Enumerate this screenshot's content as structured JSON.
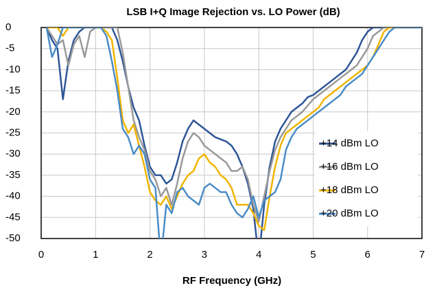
{
  "chart_data": {
    "type": "line",
    "title": "LSB I+Q Image Rejection vs. LO Power (dB)",
    "x_label": "RF Frequency  (GHz)",
    "x": [
      0.1,
      0.2,
      0.3,
      0.4,
      0.5,
      0.6,
      0.7,
      0.8,
      0.9,
      1.0,
      1.1,
      1.2,
      1.3,
      1.4,
      1.5,
      1.6,
      1.7,
      1.8,
      1.9,
      2.0,
      2.1,
      2.2,
      2.3,
      2.4,
      2.5,
      2.6,
      2.7,
      2.8,
      2.9,
      3.0,
      3.1,
      3.2,
      3.3,
      3.4,
      3.5,
      3.6,
      3.7,
      3.8,
      3.9,
      4.0,
      4.1,
      4.2,
      4.3,
      4.4,
      4.5,
      4.6,
      4.7,
      4.8,
      4.9,
      5.0,
      5.1,
      5.2,
      5.3,
      5.4,
      5.5,
      5.6,
      5.7,
      5.8,
      5.9,
      6.0,
      6.1,
      6.2,
      6.3,
      6.4,
      6.5,
      6.6,
      6.7,
      6.8,
      6.9,
      7.0
    ],
    "series": [
      {
        "name": "+14 dBm LO",
        "color": "#2e5597",
        "values": [
          0,
          -3,
          -5,
          -17,
          -8,
          -3,
          -1,
          0,
          0,
          0,
          0,
          0,
          0,
          -3,
          -8,
          -14,
          -19,
          -22,
          -28,
          -33,
          -35,
          -35,
          -37,
          -36,
          -32,
          -27,
          -24,
          -22,
          -23,
          -24,
          -25,
          -26,
          -26.5,
          -27,
          -28,
          -30,
          -33,
          -37,
          -43,
          -55,
          -42,
          -33,
          -27,
          -24,
          -22,
          -20,
          -19,
          -18,
          -16.5,
          -16,
          -15,
          -14,
          -13,
          -12,
          -11,
          -10,
          -8,
          -6,
          -3,
          -1,
          0,
          0,
          0,
          0,
          0,
          0,
          0,
          0,
          0,
          0
        ]
      },
      {
        "name": "+16 dBm LO",
        "color": "#999999",
        "values": [
          0,
          -2,
          -4,
          -3,
          -9,
          -4,
          -2,
          -7,
          -1,
          0,
          0,
          0,
          0,
          0,
          -6,
          -14,
          -22,
          -26,
          -29,
          -34,
          -36,
          -40,
          -38,
          -42,
          -37,
          -31,
          -27,
          -25,
          -26,
          -28,
          -29,
          -30,
          -31,
          -32,
          -34,
          -34,
          -33,
          -36,
          -42,
          -46,
          -40,
          -34,
          -29,
          -26,
          -24,
          -22,
          -21,
          -20,
          -18.5,
          -17,
          -16,
          -15,
          -14,
          -13,
          -12,
          -11,
          -10,
          -9,
          -7,
          -5,
          -2,
          -1,
          0,
          0,
          0,
          0,
          0,
          0,
          0,
          0
        ]
      },
      {
        "name": "+18 dBm LO",
        "color": "#f0b400",
        "values": [
          0,
          0,
          0,
          -2,
          0,
          0,
          0,
          0,
          0,
          0,
          0,
          -1,
          -3,
          -12,
          -22,
          -25,
          -23,
          -28,
          -33,
          -39,
          -41,
          -42,
          -40,
          -43,
          -40,
          -37,
          -35,
          -34,
          -31,
          -30,
          -32,
          -33,
          -35,
          -36,
          -38,
          -42,
          -42,
          -42,
          -44,
          -47,
          -48,
          -40,
          -33,
          -28,
          -25,
          -24,
          -23,
          -22,
          -21,
          -20,
          -19,
          -17,
          -16,
          -15,
          -14,
          -13,
          -12,
          -11,
          -10,
          -9,
          -7,
          -4,
          -1,
          0,
          0,
          0,
          0,
          0,
          0,
          0
        ]
      },
      {
        "name": "+20 dBm LO",
        "color": "#4a8cc7",
        "values": [
          0,
          -7,
          -4,
          0,
          0,
          0,
          0,
          0,
          0,
          0,
          0,
          -2,
          -8,
          -15,
          -24,
          -26,
          -30,
          -28,
          -30,
          -36,
          -38,
          -55,
          -42,
          -44,
          -39,
          -38,
          -40,
          -41,
          -42,
          -38,
          -37,
          -38,
          -39,
          -39,
          -42,
          -44,
          -45,
          -43,
          -40,
          -45,
          -41,
          -40,
          -39,
          -36,
          -29,
          -26,
          -24,
          -23,
          -22,
          -21,
          -20,
          -19,
          -18,
          -17,
          -16,
          -14,
          -13,
          -12,
          -11,
          -9,
          -7,
          -5,
          -3,
          -1,
          0,
          0,
          0,
          0,
          0,
          0
        ]
      }
    ],
    "xlim": [
      0,
      7
    ],
    "xticks": [
      0,
      1,
      2,
      3,
      4,
      5,
      6,
      7
    ],
    "ylim": [
      -50,
      0
    ],
    "yticks": [
      0,
      -5,
      -10,
      -15,
      -20,
      -25,
      -30,
      -35,
      -40,
      -45,
      -50
    ],
    "grid": true,
    "legend": "lower right"
  }
}
